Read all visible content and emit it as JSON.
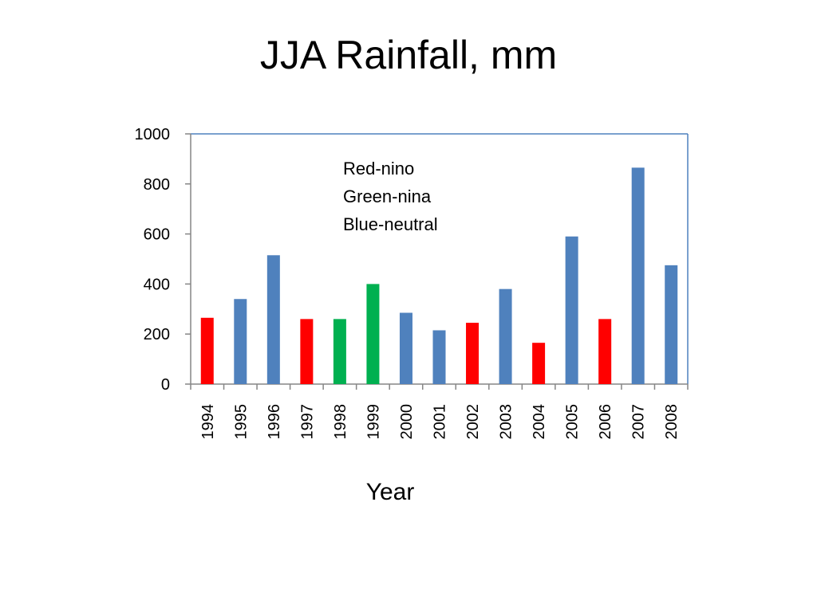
{
  "slide": {
    "title": "JJA Rainfall, mm"
  },
  "chart_data": {
    "type": "bar",
    "title": "JJA Rainfall, mm",
    "xlabel": "Year",
    "ylabel": "",
    "ylim": [
      0,
      1000
    ],
    "yticks": [
      0,
      200,
      400,
      600,
      800,
      1000
    ],
    "grid": false,
    "categories": [
      "1994",
      "1995",
      "1996",
      "1997",
      "1998",
      "1999",
      "2000",
      "2001",
      "2002",
      "2003",
      "2004",
      "2005",
      "2006",
      "2007",
      "2008"
    ],
    "values": [
      265,
      340,
      515,
      260,
      260,
      400,
      285,
      215,
      245,
      380,
      165,
      590,
      260,
      865,
      475
    ],
    "phases": [
      "nino",
      "neutral",
      "neutral",
      "nino",
      "nina",
      "nina",
      "neutral",
      "neutral",
      "nino",
      "neutral",
      "nino",
      "neutral",
      "nino",
      "neutral",
      "neutral"
    ],
    "colors": {
      "nino": "#ff0000",
      "nina": "#00b050",
      "neutral": "#4f81bd",
      "axis": "#4f81bd"
    },
    "annotations": [
      "Red-nino",
      "Green-nina",
      "Blue-neutral"
    ]
  }
}
